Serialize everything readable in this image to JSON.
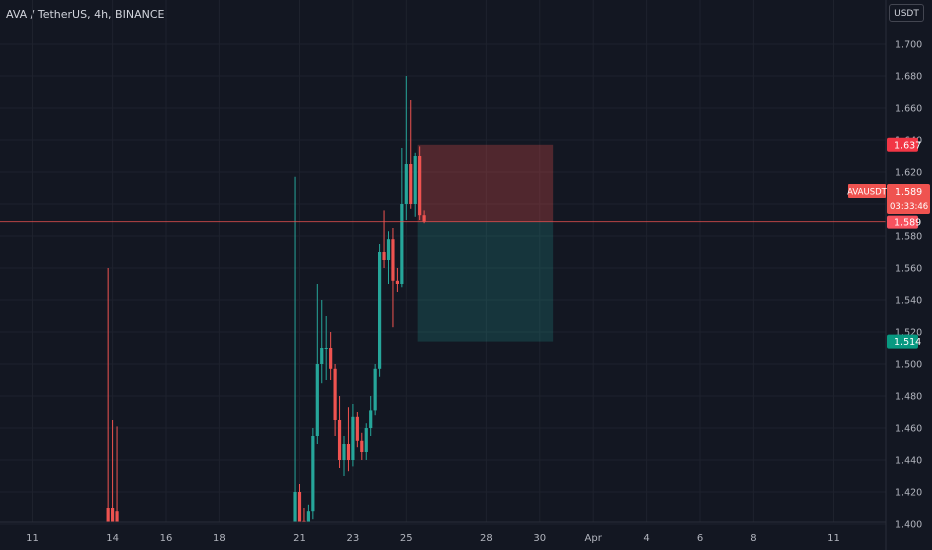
{
  "header": {
    "symbol_title": "AVA / TetherUS, 4h, BINANCE",
    "currency_unit": "USDT"
  },
  "chart_data": {
    "type": "candlestick",
    "title": "AVA / TetherUS, 4h, BINANCE",
    "ylim": [
      1.4,
      1.72
    ],
    "y_ticks": [
      "1.400",
      "1.420",
      "1.440",
      "1.460",
      "1.480",
      "1.500",
      "1.520",
      "1.540",
      "1.560",
      "1.580",
      "1.600",
      "1.620",
      "1.640",
      "1.660",
      "1.680",
      "1.700"
    ],
    "x_ticks": [
      {
        "label": "11",
        "idx": -70
      },
      {
        "label": "14",
        "idx": -52
      },
      {
        "label": "16",
        "idx": -40
      },
      {
        "label": "18",
        "idx": -28
      },
      {
        "label": "21",
        "idx": -10
      },
      {
        "label": "23",
        "idx": 2
      },
      {
        "label": "25",
        "idx": 14
      },
      {
        "label": "28",
        "idx": 32
      },
      {
        "label": "30",
        "idx": 44
      },
      {
        "label": "Apr",
        "idx": 56
      },
      {
        "label": "4",
        "idx": 68
      },
      {
        "label": "6",
        "idx": 80
      },
      {
        "label": "8",
        "idx": 92
      },
      {
        "label": "11",
        "idx": 110
      }
    ],
    "colors": {
      "up": "#26a69a",
      "down": "#ef5350",
      "background": "#131722",
      "grid": "#1e222d",
      "axis_text": "#b2b5be"
    },
    "candles": [
      {
        "i": -53,
        "o": 1.41,
        "h": 1.56,
        "c": 1.395,
        "l": 1.39
      },
      {
        "i": -52,
        "o": 1.41,
        "h": 1.465,
        "c": 1.398,
        "l": 1.39
      },
      {
        "i": -51,
        "o": 1.408,
        "h": 1.461,
        "c": 1.399,
        "l": 1.39
      },
      {
        "i": -11,
        "o": 1.395,
        "h": 1.617,
        "c": 1.42,
        "l": 1.39
      },
      {
        "i": -10,
        "o": 1.42,
        "h": 1.425,
        "c": 1.401,
        "l": 1.398
      },
      {
        "i": -9,
        "o": 1.402,
        "h": 1.41,
        "c": 1.396,
        "l": 1.393
      },
      {
        "i": -8,
        "o": 1.397,
        "h": 1.412,
        "c": 1.408,
        "l": 1.392
      },
      {
        "i": -7,
        "o": 1.408,
        "h": 1.46,
        "c": 1.455,
        "l": 1.403
      },
      {
        "i": -6,
        "o": 1.455,
        "h": 1.55,
        "c": 1.5,
        "l": 1.45
      },
      {
        "i": -5,
        "o": 1.5,
        "h": 1.54,
        "c": 1.51,
        "l": 1.488
      },
      {
        "i": -4,
        "o": 1.51,
        "h": 1.53,
        "c": 1.51,
        "l": 1.49
      },
      {
        "i": -3,
        "o": 1.51,
        "h": 1.52,
        "c": 1.497,
        "l": 1.49
      },
      {
        "i": -2,
        "o": 1.497,
        "h": 1.5,
        "c": 1.465,
        "l": 1.455
      },
      {
        "i": -1,
        "o": 1.465,
        "h": 1.48,
        "c": 1.44,
        "l": 1.435
      },
      {
        "i": 0,
        "o": 1.44,
        "h": 1.455,
        "c": 1.45,
        "l": 1.43
      },
      {
        "i": 1,
        "o": 1.45,
        "h": 1.473,
        "c": 1.44,
        "l": 1.433
      },
      {
        "i": 2,
        "o": 1.44,
        "h": 1.475,
        "c": 1.467,
        "l": 1.436
      },
      {
        "i": 3,
        "o": 1.467,
        "h": 1.47,
        "c": 1.452,
        "l": 1.448
      },
      {
        "i": 4,
        "o": 1.452,
        "h": 1.457,
        "c": 1.445,
        "l": 1.44
      },
      {
        "i": 5,
        "o": 1.445,
        "h": 1.463,
        "c": 1.46,
        "l": 1.44
      },
      {
        "i": 6,
        "o": 1.46,
        "h": 1.48,
        "c": 1.471,
        "l": 1.455
      },
      {
        "i": 7,
        "o": 1.471,
        "h": 1.5,
        "c": 1.497,
        "l": 1.468
      },
      {
        "i": 8,
        "o": 1.497,
        "h": 1.575,
        "c": 1.57,
        "l": 1.492
      },
      {
        "i": 9,
        "o": 1.57,
        "h": 1.596,
        "c": 1.565,
        "l": 1.56
      },
      {
        "i": 10,
        "o": 1.565,
        "h": 1.583,
        "c": 1.578,
        "l": 1.55
      },
      {
        "i": 11,
        "o": 1.578,
        "h": 1.585,
        "c": 1.552,
        "l": 1.523
      },
      {
        "i": 12,
        "o": 1.552,
        "h": 1.56,
        "c": 1.55,
        "l": 1.545
      },
      {
        "i": 13,
        "o": 1.55,
        "h": 1.635,
        "c": 1.6,
        "l": 1.548
      },
      {
        "i": 14,
        "o": 1.6,
        "h": 1.68,
        "c": 1.625,
        "l": 1.59
      },
      {
        "i": 15,
        "o": 1.625,
        "h": 1.665,
        "c": 1.6,
        "l": 1.597
      },
      {
        "i": 16,
        "o": 1.6,
        "h": 1.632,
        "c": 1.63,
        "l": 1.592
      },
      {
        "i": 17,
        "o": 1.63,
        "h": 1.636,
        "c": 1.593,
        "l": 1.59
      },
      {
        "i": 18,
        "o": 1.593,
        "h": 1.596,
        "c": 1.589,
        "l": 1.588
      }
    ],
    "position": {
      "type": "short",
      "entry": 1.589,
      "stop": 1.637,
      "target": 1.514,
      "from_idx": 17,
      "to_idx": 47
    },
    "labels": {
      "stop_price": "1.637",
      "ticker": "AVAUSDT",
      "last_price": "1.589",
      "countdown": "03:33:46",
      "entry_price": "1.589",
      "target_price": "1.514"
    }
  }
}
